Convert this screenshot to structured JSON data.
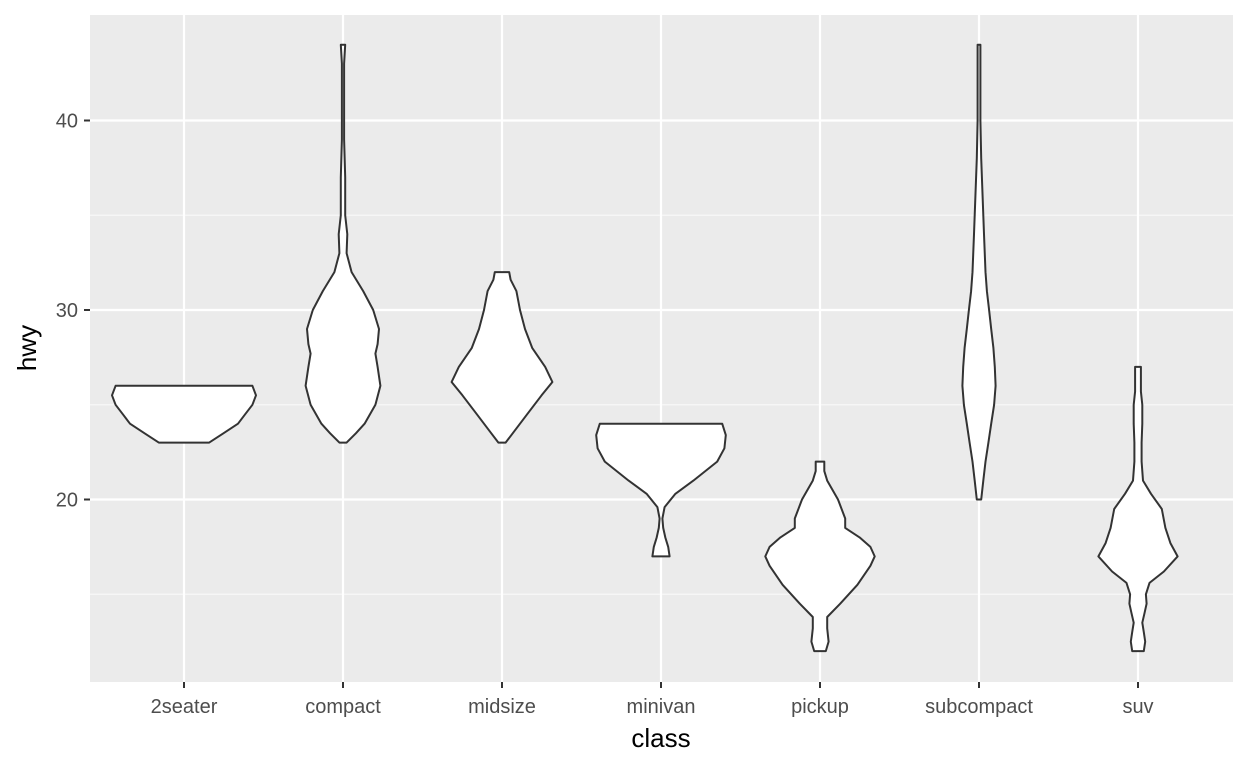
{
  "colors": {
    "panel_background": "#ebebeb",
    "grid_major": "#ffffff",
    "grid_minor": "#f7f7f7",
    "violin_fill": "#ffffff",
    "violin_outline": "#333333",
    "tick_text": "#4d4d4d",
    "tick_mark": "#333333",
    "axis_title": "#000000"
  },
  "chart_data": {
    "type": "violin",
    "title": "",
    "xlabel": "class",
    "ylabel": "hwy",
    "ylim": [
      10.6,
      45.4
    ],
    "y_major_ticks": [
      20,
      30,
      40
    ],
    "y_minor_ticks": [
      15,
      25,
      35
    ],
    "grid": true,
    "legend": "none",
    "categories": [
      "2seater",
      "compact",
      "midsize",
      "minivan",
      "pickup",
      "subcompact",
      "suv"
    ],
    "violins": [
      {
        "category": "2seater",
        "min": 23,
        "max": 26,
        "profile": [
          [
            23,
            0.35
          ],
          [
            23.5,
            0.55
          ],
          [
            24.0,
            0.75
          ],
          [
            24.5,
            0.85
          ],
          [
            25.0,
            0.95
          ],
          [
            25.5,
            1.0
          ],
          [
            26,
            0.95
          ]
        ]
      },
      {
        "category": "compact",
        "min": 23,
        "max": 44,
        "profile": [
          [
            23,
            0.05
          ],
          [
            23.5,
            0.18
          ],
          [
            24.0,
            0.3
          ],
          [
            25.0,
            0.45
          ],
          [
            26.0,
            0.52
          ],
          [
            27.0,
            0.48
          ],
          [
            27.7,
            0.45
          ],
          [
            28.2,
            0.48
          ],
          [
            29.0,
            0.5
          ],
          [
            30.0,
            0.42
          ],
          [
            31.0,
            0.28
          ],
          [
            32.0,
            0.12
          ],
          [
            33.0,
            0.05
          ],
          [
            34.0,
            0.06
          ],
          [
            35.0,
            0.03
          ],
          [
            37.0,
            0.03
          ],
          [
            39.0,
            0.015
          ],
          [
            41.0,
            0.015
          ],
          [
            43.0,
            0.015
          ],
          [
            44,
            0.03
          ]
        ]
      },
      {
        "category": "midsize",
        "min": 23,
        "max": 32,
        "profile": [
          [
            23,
            0.05
          ],
          [
            23.5,
            0.15
          ],
          [
            24.5,
            0.35
          ],
          [
            25.5,
            0.55
          ],
          [
            26.2,
            0.7
          ],
          [
            27.0,
            0.6
          ],
          [
            28.0,
            0.42
          ],
          [
            29.0,
            0.32
          ],
          [
            30.0,
            0.25
          ],
          [
            31.0,
            0.2
          ],
          [
            31.6,
            0.12
          ],
          [
            32,
            0.1
          ]
        ]
      },
      {
        "category": "minivan",
        "min": 17,
        "max": 24,
        "profile": [
          [
            17,
            0.12
          ],
          [
            17.5,
            0.1
          ],
          [
            18.0,
            0.06
          ],
          [
            18.5,
            0.03
          ],
          [
            19.0,
            0.02
          ],
          [
            19.6,
            0.05
          ],
          [
            20.3,
            0.2
          ],
          [
            21.0,
            0.45
          ],
          [
            22.0,
            0.78
          ],
          [
            22.7,
            0.88
          ],
          [
            23.4,
            0.9
          ],
          [
            24,
            0.85
          ]
        ]
      },
      {
        "category": "pickup",
        "min": 12,
        "max": 22,
        "profile": [
          [
            12,
            0.08
          ],
          [
            12.5,
            0.12
          ],
          [
            13.2,
            0.1
          ],
          [
            13.8,
            0.1
          ],
          [
            14.5,
            0.28
          ],
          [
            15.5,
            0.52
          ],
          [
            16.5,
            0.7
          ],
          [
            17.0,
            0.76
          ],
          [
            17.5,
            0.7
          ],
          [
            18.0,
            0.55
          ],
          [
            18.5,
            0.35
          ],
          [
            19.0,
            0.35
          ],
          [
            20.0,
            0.25
          ],
          [
            21.0,
            0.1
          ],
          [
            21.5,
            0.06
          ],
          [
            22,
            0.06
          ]
        ]
      },
      {
        "category": "subcompact",
        "min": 20,
        "max": 44,
        "profile": [
          [
            20,
            0.03
          ],
          [
            21,
            0.06
          ],
          [
            22,
            0.09
          ],
          [
            23,
            0.13
          ],
          [
            24,
            0.17
          ],
          [
            25,
            0.21
          ],
          [
            26,
            0.23
          ],
          [
            27,
            0.22
          ],
          [
            28,
            0.2
          ],
          [
            29,
            0.17
          ],
          [
            30,
            0.14
          ],
          [
            31,
            0.11
          ],
          [
            32,
            0.09
          ],
          [
            34,
            0.07
          ],
          [
            36,
            0.05
          ],
          [
            38,
            0.03
          ],
          [
            40,
            0.02
          ],
          [
            42,
            0.02
          ],
          [
            44,
            0.02
          ]
        ]
      },
      {
        "category": "suv",
        "min": 12,
        "max": 27,
        "profile": [
          [
            12,
            0.08
          ],
          [
            12.5,
            0.1
          ],
          [
            13.0,
            0.08
          ],
          [
            13.5,
            0.06
          ],
          [
            14.0,
            0.09
          ],
          [
            14.5,
            0.12
          ],
          [
            15.0,
            0.11
          ],
          [
            15.6,
            0.16
          ],
          [
            16.2,
            0.36
          ],
          [
            17.0,
            0.55
          ],
          [
            17.7,
            0.45
          ],
          [
            18.5,
            0.38
          ],
          [
            19.5,
            0.33
          ],
          [
            20.3,
            0.18
          ],
          [
            21,
            0.07
          ],
          [
            22,
            0.05
          ],
          [
            23.0,
            0.05
          ],
          [
            24.0,
            0.06
          ],
          [
            25.0,
            0.06
          ],
          [
            25.7,
            0.04
          ],
          [
            26.3,
            0.04
          ],
          [
            27,
            0.04
          ]
        ]
      }
    ]
  }
}
